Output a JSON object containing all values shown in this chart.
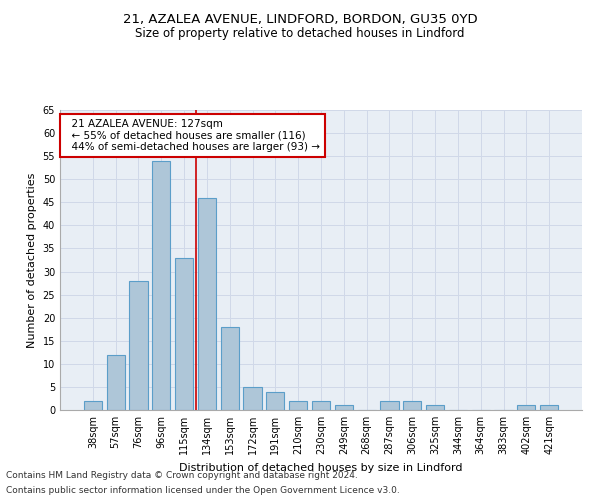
{
  "title1": "21, AZALEA AVENUE, LINDFORD, BORDON, GU35 0YD",
  "title2": "Size of property relative to detached houses in Lindford",
  "xlabel": "Distribution of detached houses by size in Lindford",
  "ylabel": "Number of detached properties",
  "categories": [
    "38sqm",
    "57sqm",
    "76sqm",
    "96sqm",
    "115sqm",
    "134sqm",
    "153sqm",
    "172sqm",
    "191sqm",
    "210sqm",
    "230sqm",
    "249sqm",
    "268sqm",
    "287sqm",
    "306sqm",
    "325sqm",
    "344sqm",
    "364sqm",
    "383sqm",
    "402sqm",
    "421sqm"
  ],
  "values": [
    2,
    12,
    28,
    54,
    33,
    46,
    18,
    5,
    4,
    2,
    2,
    1,
    0,
    2,
    2,
    1,
    0,
    0,
    0,
    1,
    1
  ],
  "bar_color": "#aec6d8",
  "bar_edge_color": "#5b9ec9",
  "bar_width": 0.8,
  "vline_x": 4.5,
  "vline_color": "#cc0000",
  "annotation_text": "  21 AZALEA AVENUE: 127sqm\n  ← 55% of detached houses are smaller (116)\n  44% of semi-detached houses are larger (93) →",
  "annotation_box_color": "#ffffff",
  "annotation_box_edge": "#cc0000",
  "ylim": [
    0,
    65
  ],
  "yticks": [
    0,
    5,
    10,
    15,
    20,
    25,
    30,
    35,
    40,
    45,
    50,
    55,
    60,
    65
  ],
  "grid_color": "#d0d8e8",
  "background_color": "#e8eef5",
  "footnote1": "Contains HM Land Registry data © Crown copyright and database right 2024.",
  "footnote2": "Contains public sector information licensed under the Open Government Licence v3.0.",
  "title1_fontsize": 9.5,
  "title2_fontsize": 8.5,
  "axis_label_fontsize": 8,
  "tick_fontsize": 7,
  "annotation_fontsize": 7.5,
  "footnote_fontsize": 6.5
}
